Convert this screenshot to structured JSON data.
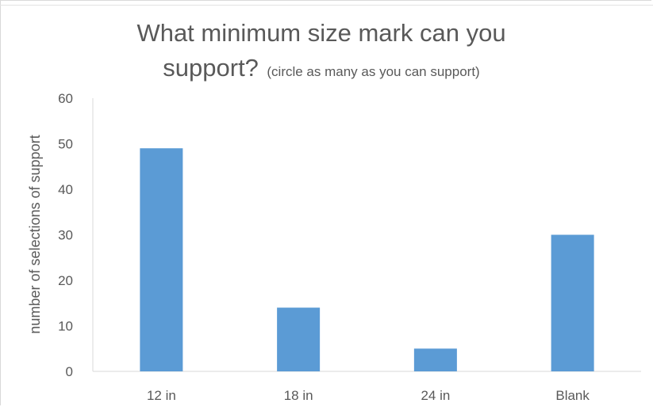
{
  "chart_data": {
    "type": "bar",
    "title_line1": "What minimum size mark can you",
    "title_line2_main": "support?",
    "title_line2_sub": "(circle as many as you can support)",
    "xlabel": "",
    "ylabel": "number of selections of support",
    "categories": [
      "12 in",
      "18 in",
      "24 in",
      "Blank"
    ],
    "values": [
      49,
      14,
      5,
      30
    ],
    "ylim": [
      0,
      60
    ],
    "yticks": [
      0,
      10,
      20,
      30,
      40,
      50,
      60
    ],
    "bar_color": "#5b9bd5",
    "grid": false,
    "legend": "none"
  }
}
